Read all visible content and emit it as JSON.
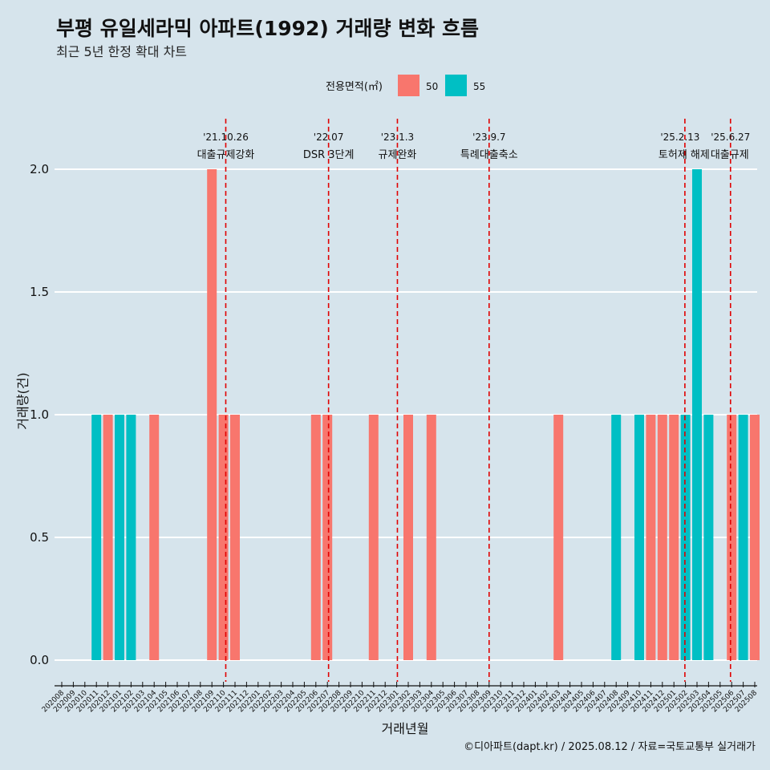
{
  "colors": {
    "area50": "#f8766d",
    "area55": "#00bfc4",
    "event_line": "#e00000",
    "grid": "#ffffff",
    "background": "#d6e4ec"
  },
  "chart_data": {
    "type": "bar",
    "title": "부평 유일세라믹 아파트(1992) 거래량 변화 흐름",
    "subtitle": "최근 5년 한정 확대 차트",
    "xlabel": "거래년월",
    "ylabel": "거래량(건)",
    "ylim": [
      0,
      2
    ],
    "yticks": [
      "0.0",
      "0.5",
      "1.0",
      "1.5",
      "2.0"
    ],
    "grid": true,
    "legend": {
      "title": "전용면적(㎡)",
      "position": "top",
      "entries": [
        "50",
        "55"
      ]
    },
    "categories": [
      "202008",
      "202009",
      "202010",
      "202011",
      "202012",
      "202101",
      "202102",
      "202103",
      "202104",
      "202105",
      "202106",
      "202107",
      "202108",
      "202109",
      "202110",
      "202111",
      "202112",
      "202201",
      "202202",
      "202203",
      "202204",
      "202205",
      "202206",
      "202207",
      "202208",
      "202209",
      "202210",
      "202211",
      "202212",
      "202301",
      "202302",
      "202303",
      "202304",
      "202305",
      "202306",
      "202307",
      "202308",
      "202309",
      "202310",
      "202311",
      "202312",
      "202401",
      "202402",
      "202403",
      "202404",
      "202405",
      "202406",
      "202407",
      "202408",
      "202409",
      "202410",
      "202411",
      "202412",
      "202501",
      "202502",
      "202503",
      "202504",
      "202505",
      "202506",
      "202507",
      "202508"
    ],
    "series": [
      {
        "name": "50",
        "values": [
          0,
          0,
          0,
          0,
          1,
          0,
          0,
          0,
          1,
          0,
          0,
          0,
          0,
          2,
          1,
          1,
          0,
          0,
          0,
          0,
          0,
          0,
          1,
          1,
          0,
          0,
          0,
          1,
          0,
          0,
          1,
          0,
          1,
          0,
          0,
          0,
          0,
          0,
          0,
          0,
          0,
          0,
          0,
          1,
          0,
          0,
          0,
          0,
          0,
          0,
          0,
          1,
          1,
          1,
          0,
          0,
          0,
          0,
          1,
          0,
          1
        ]
      },
      {
        "name": "55",
        "values": [
          0,
          0,
          0,
          1,
          0,
          1,
          1,
          0,
          0,
          0,
          0,
          0,
          0,
          0,
          0,
          0,
          0,
          0,
          0,
          0,
          0,
          0,
          0,
          0,
          0,
          0,
          0,
          0,
          0,
          0,
          0,
          0,
          0,
          0,
          0,
          0,
          0,
          0,
          0,
          0,
          0,
          0,
          0,
          0,
          0,
          0,
          0,
          0,
          1,
          0,
          1,
          0,
          0,
          0,
          1,
          2,
          1,
          0,
          0,
          1,
          0
        ]
      }
    ],
    "events": [
      {
        "date": "'21.10.26",
        "label": "대출규제강화"
      },
      {
        "date": "'22.07",
        "label": "DSR 3단계"
      },
      {
        "date": "'23.1.3",
        "label": "규제완화"
      },
      {
        "date": "'23.9.7",
        "label": "특례대출축소"
      },
      {
        "date": "'25.2.13",
        "label": "토허제 해제"
      },
      {
        "date": "'25.6.27",
        "label": "대출규제"
      }
    ],
    "caption": "©디아파트(dapt.kr) / 2025.08.12 / 자료=국토교통부 실거래가"
  }
}
